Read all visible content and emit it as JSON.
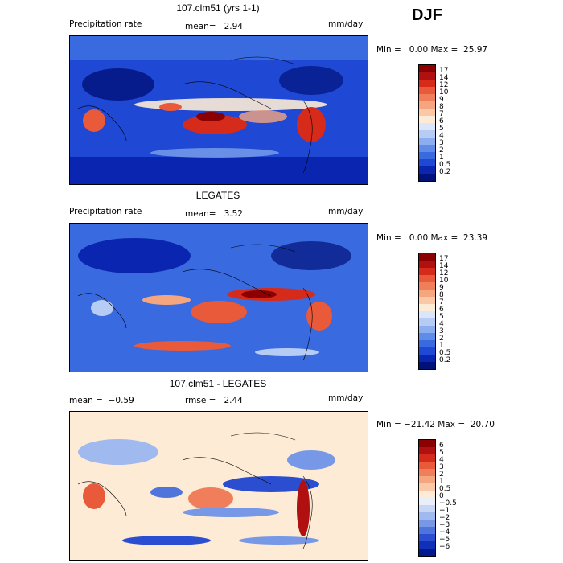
{
  "season": "DJF",
  "panels": [
    {
      "title": "107.clm51 (yrs 1-1)",
      "variable": "Precipitation rate",
      "stat1": "mean=   2.94",
      "units": "mm/day",
      "minmax": "Min =   0.00 Max =  25.97",
      "bins": [
        "17",
        "14",
        "12",
        "10",
        "9",
        "8",
        "7",
        "6",
        "5",
        "4",
        "3",
        "2",
        "1",
        "0.5",
        "0.2"
      ],
      "colors": [
        "#8b0000",
        "#b01010",
        "#d62a1a",
        "#e85a3a",
        "#f07e5a",
        "#f6a67e",
        "#fac8a6",
        "#fdebd6",
        "#dbe6fa",
        "#b6ccf5",
        "#8aaef0",
        "#5f8ce8",
        "#3a6ae0",
        "#1f48d4",
        "#0a26b0",
        "#00127a"
      ]
    },
    {
      "title": "LEGATES",
      "variable": "Precipitation rate",
      "stat1": "mean=   3.52",
      "units": "mm/day",
      "minmax": "Min =   0.00 Max =  23.39",
      "bins": [
        "17",
        "14",
        "12",
        "10",
        "9",
        "8",
        "7",
        "6",
        "5",
        "4",
        "3",
        "2",
        "1",
        "0.5",
        "0.2"
      ],
      "colors": [
        "#8b0000",
        "#b01010",
        "#d62a1a",
        "#e85a3a",
        "#f07e5a",
        "#f6a67e",
        "#fac8a6",
        "#fdebd6",
        "#dbe6fa",
        "#b6ccf5",
        "#8aaef0",
        "#5f8ce8",
        "#3a6ae0",
        "#1f48d4",
        "#0a26b0",
        "#00127a"
      ]
    },
    {
      "title": "107.clm51 - LEGATES",
      "stat1": "mean =  −0.59",
      "stat2": "rmse =   2.44",
      "units": "mm/day",
      "minmax": "Min = −21.42 Max =  20.70",
      "bins": [
        "6",
        "5",
        "4",
        "3",
        "2",
        "1",
        "0.5",
        "0",
        "−0.5",
        "−1",
        "−2",
        "−3",
        "−4",
        "−5",
        "−6"
      ],
      "colors": [
        "#8b0000",
        "#b01010",
        "#d62a1a",
        "#e85a3a",
        "#f07e5a",
        "#f6a67e",
        "#fac8a6",
        "#fdebd6",
        "#e8eefa",
        "#c8d6f5",
        "#a0b9ef",
        "#7698e6",
        "#4f74dc",
        "#2a4ecf",
        "#1030b8",
        "#001890"
      ]
    }
  ]
}
